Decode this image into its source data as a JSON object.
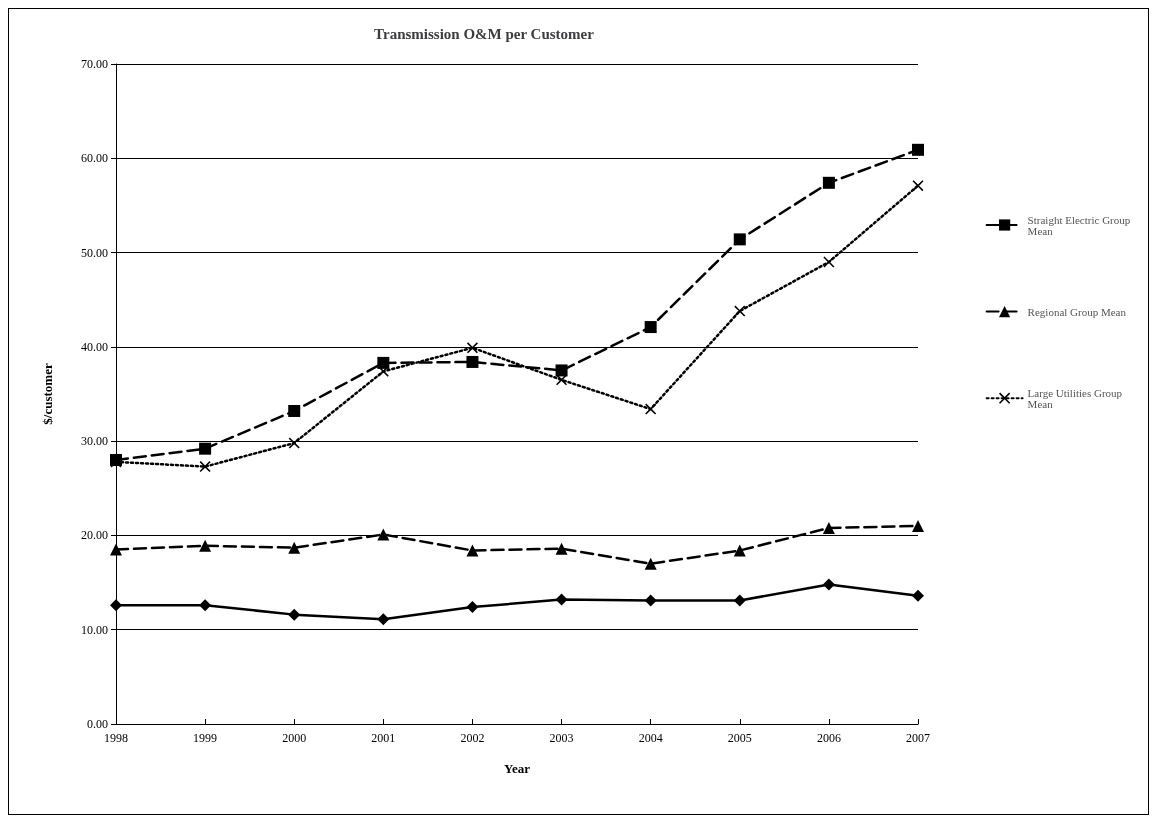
{
  "chart_data": {
    "type": "line",
    "title": "Transmission O&M per Customer",
    "xlabel": "Year",
    "ylabel": "$/customer",
    "categories": [
      "1998",
      "1999",
      "2000",
      "2001",
      "2002",
      "2003",
      "2004",
      "2005",
      "2006",
      "2007"
    ],
    "ylim": [
      0,
      70
    ],
    "yticks": [
      {
        "value": 0,
        "label": "0.00"
      },
      {
        "value": 10,
        "label": "10.00"
      },
      {
        "value": 20,
        "label": "20.00"
      },
      {
        "value": 30,
        "label": "30.00"
      },
      {
        "value": 40,
        "label": "40.00"
      },
      {
        "value": 50,
        "label": "50.00"
      },
      {
        "value": 60,
        "label": "60.00"
      },
      {
        "value": 70,
        "label": "70.00"
      }
    ],
    "grid": "y",
    "legend": "right",
    "series": [
      {
        "color": "#000000",
        "marker": "diamond",
        "line_style": "solid",
        "values": [
          12.6,
          12.6,
          11.6,
          11.1,
          12.4,
          13.2,
          13.1,
          13.1,
          14.8,
          13.6
        ]
      },
      {
        "name": "Straight Electric Group Mean",
        "color": "#000000",
        "marker": "square",
        "line_style": "dashed",
        "values": [
          28.0,
          29.2,
          33.2,
          38.3,
          38.4,
          37.5,
          42.1,
          51.4,
          57.4,
          60.9
        ]
      },
      {
        "name": "Regional Group Mean",
        "color": "#000000",
        "marker": "triangle",
        "line_style": "dashed",
        "values": [
          18.5,
          18.9,
          18.7,
          20.1,
          18.4,
          18.6,
          17.0,
          18.4,
          20.8,
          21.0
        ]
      },
      {
        "name": "Large Utilities Group Mean",
        "color": "#000000",
        "marker": "cross",
        "line_style": "dotted",
        "values": [
          27.8,
          27.3,
          29.8,
          37.4,
          39.9,
          36.5,
          33.4,
          43.8,
          49.0,
          57.1
        ]
      }
    ]
  }
}
